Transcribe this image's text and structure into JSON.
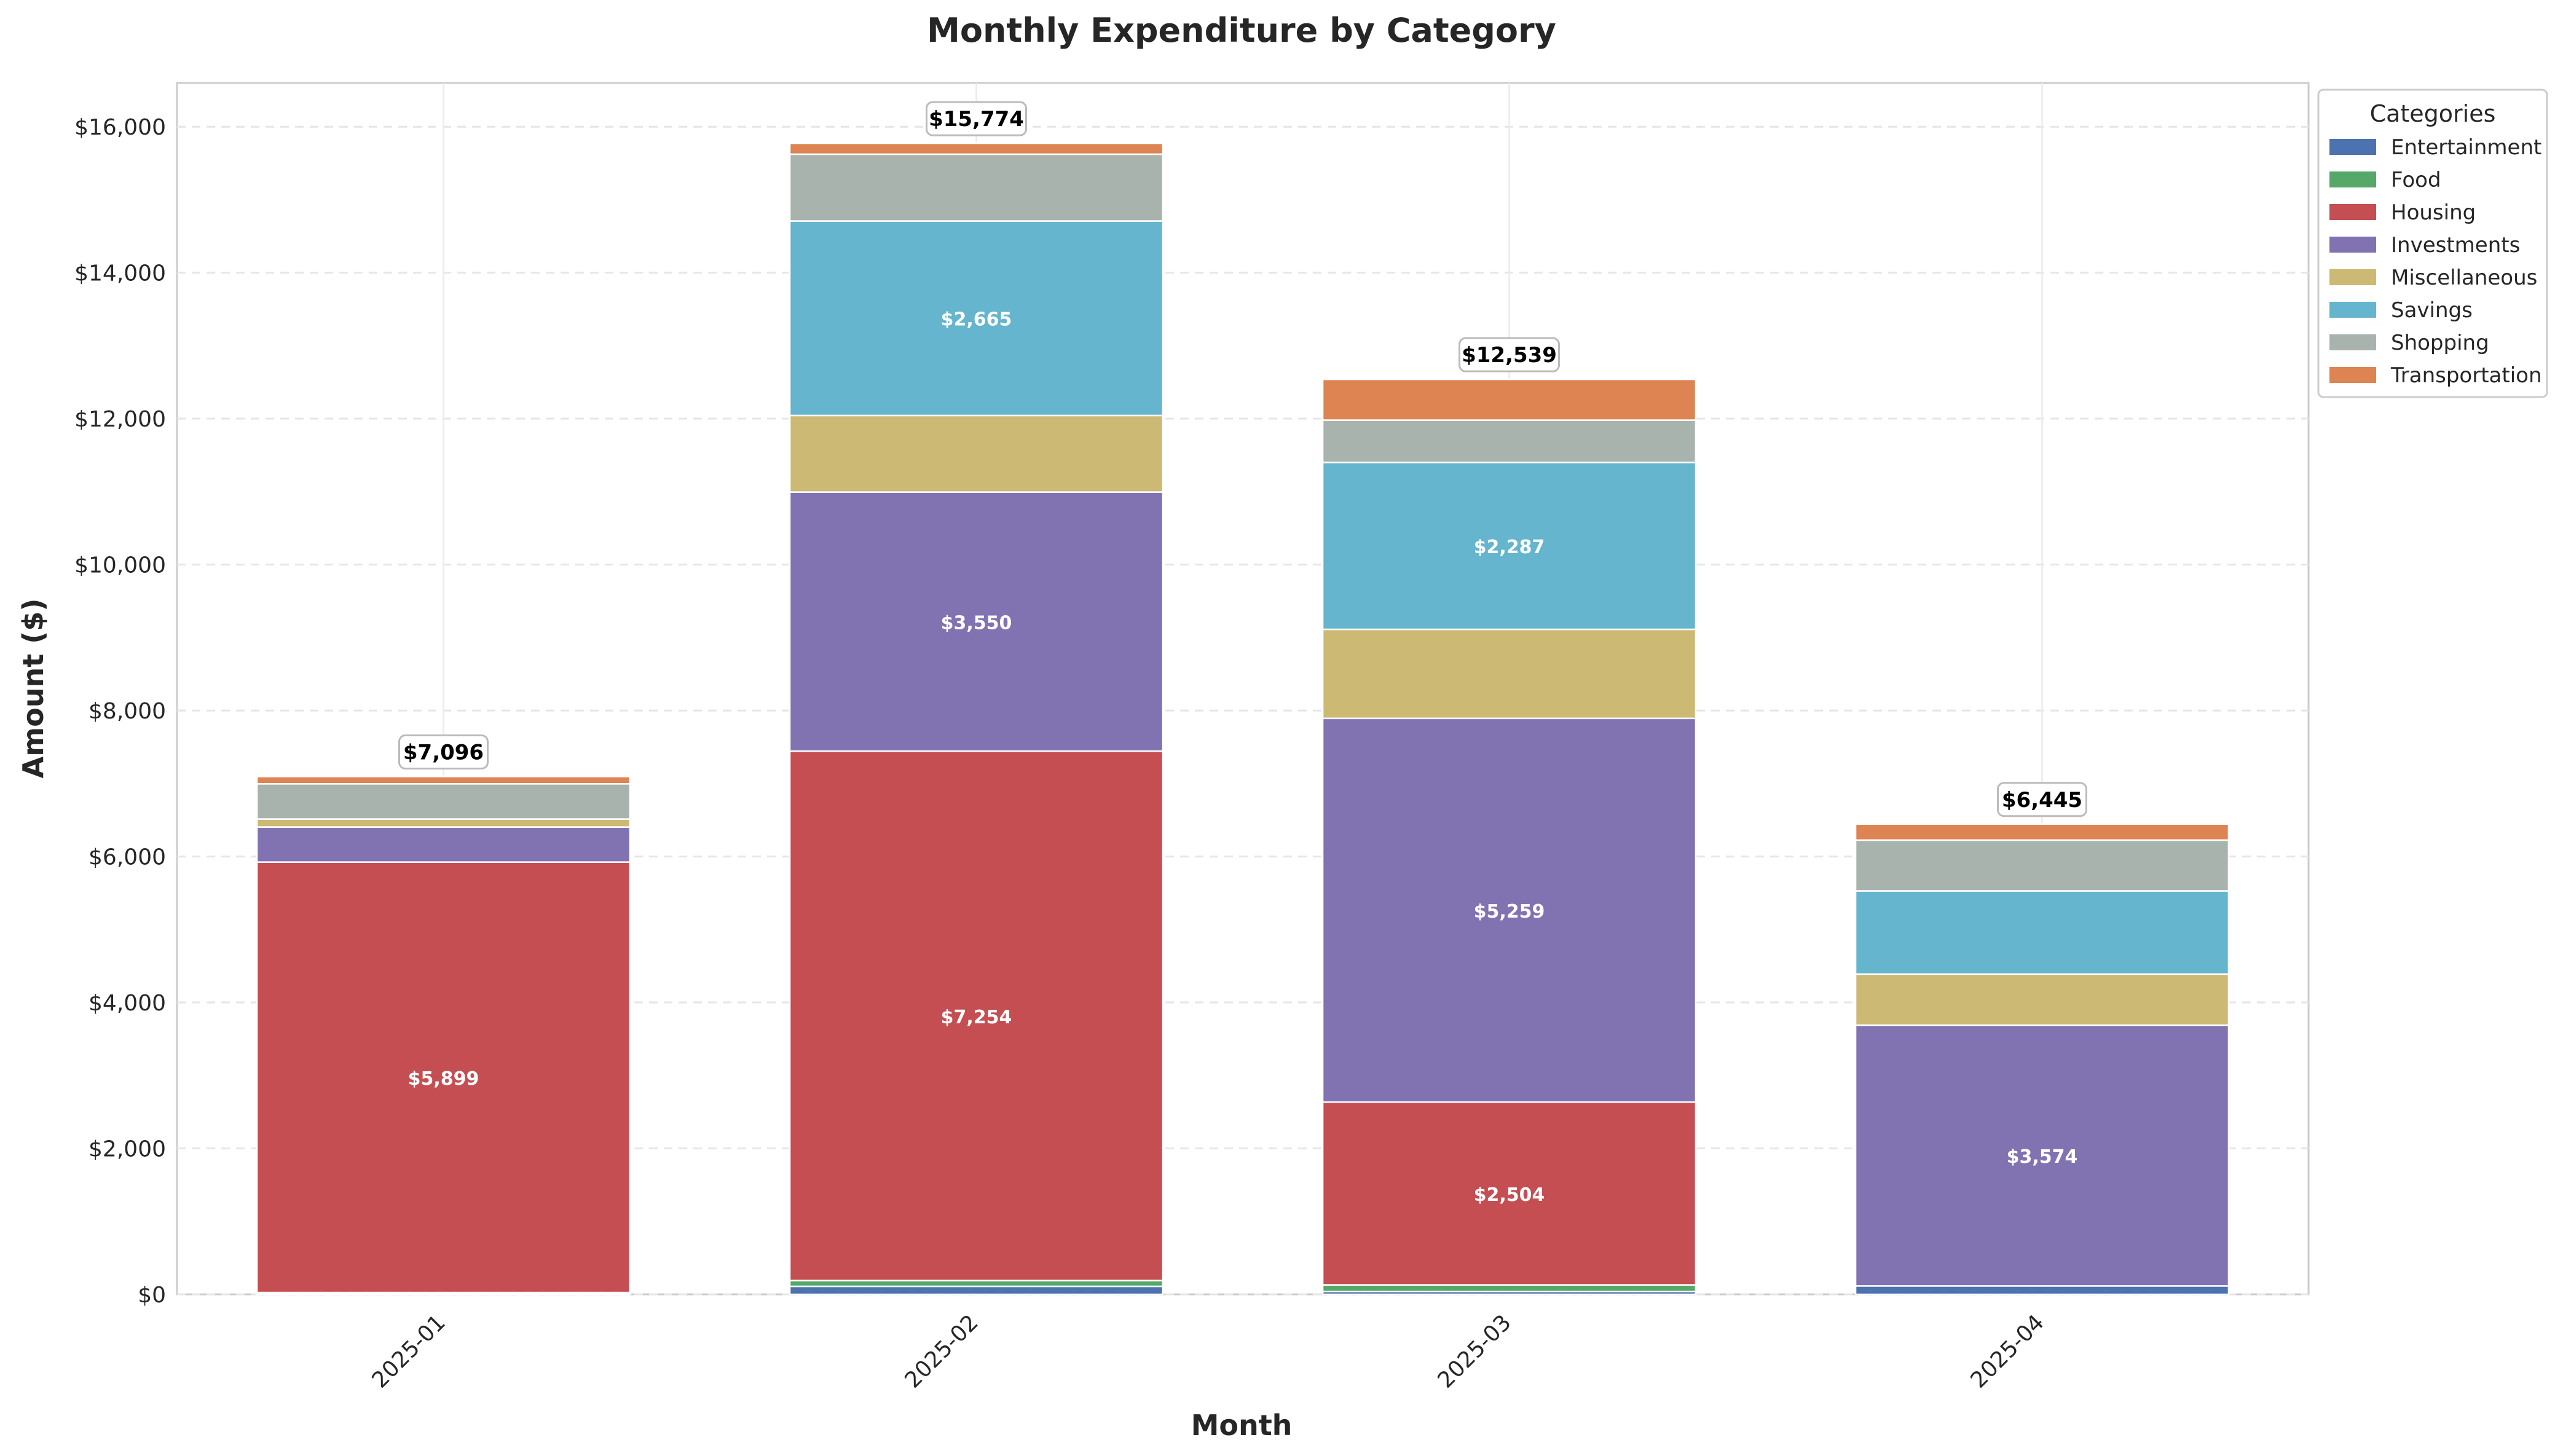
{
  "chart_data": {
    "type": "bar",
    "stacked": true,
    "title": "Monthly Expenditure by Category",
    "xlabel": "Month",
    "ylabel": "Amount ($)",
    "ylim": [
      0,
      16600
    ],
    "yticks": [
      0,
      2000,
      4000,
      6000,
      8000,
      10000,
      12000,
      14000,
      16000
    ],
    "ytick_labels": [
      "$0",
      "$2,000",
      "$4,000",
      "$6,000",
      "$8,000",
      "$10,000",
      "$12,000",
      "$14,000",
      "$16,000"
    ],
    "grid": true,
    "legend_title": "Categories",
    "legend_position": "outside-top-right",
    "categories": [
      "2025-01",
      "2025-02",
      "2025-03",
      "2025-04"
    ],
    "series": [
      {
        "name": "Entertainment",
        "color": "#4C72B0",
        "values": [
          10,
          110,
          40,
          115
        ]
      },
      {
        "name": "Food",
        "color": "#55A868",
        "values": [
          15,
          80,
          90,
          0
        ]
      },
      {
        "name": "Housing",
        "color": "#C44E52",
        "values": [
          5899,
          7254,
          2504,
          0
        ]
      },
      {
        "name": "Investments",
        "color": "#8172B2",
        "values": [
          480,
          3550,
          5259,
          3574
        ]
      },
      {
        "name": "Miscellaneous",
        "color": "#CCB974",
        "values": [
          110,
          1050,
          1220,
          700
        ]
      },
      {
        "name": "Savings",
        "color": "#64B5CD",
        "values": [
          0,
          2665,
          2287,
          1140
        ]
      },
      {
        "name": "Shopping",
        "color": "#A9B3AE",
        "values": [
          482,
          915,
          580,
          696
        ]
      },
      {
        "name": "Transportation",
        "color": "#DD8452",
        "values": [
          100,
          150,
          559,
          220
        ]
      }
    ],
    "segment_labels": [
      {
        "month": "2025-01",
        "series": "Housing",
        "text": "$5,899"
      },
      {
        "month": "2025-02",
        "series": "Housing",
        "text": "$7,254"
      },
      {
        "month": "2025-02",
        "series": "Investments",
        "text": "$3,550"
      },
      {
        "month": "2025-02",
        "series": "Savings",
        "text": "$2,665"
      },
      {
        "month": "2025-03",
        "series": "Housing",
        "text": "$2,504"
      },
      {
        "month": "2025-03",
        "series": "Investments",
        "text": "$5,259"
      },
      {
        "month": "2025-03",
        "series": "Savings",
        "text": "$2,287"
      },
      {
        "month": "2025-04",
        "series": "Investments",
        "text": "$3,574"
      }
    ],
    "totals": [
      {
        "month": "2025-01",
        "value": 7096,
        "text": "$7,096"
      },
      {
        "month": "2025-02",
        "value": 15774,
        "text": "$15,774"
      },
      {
        "month": "2025-03",
        "value": 12539,
        "text": "$12,539"
      },
      {
        "month": "2025-04",
        "value": 6445,
        "text": "$6,445"
      }
    ]
  }
}
